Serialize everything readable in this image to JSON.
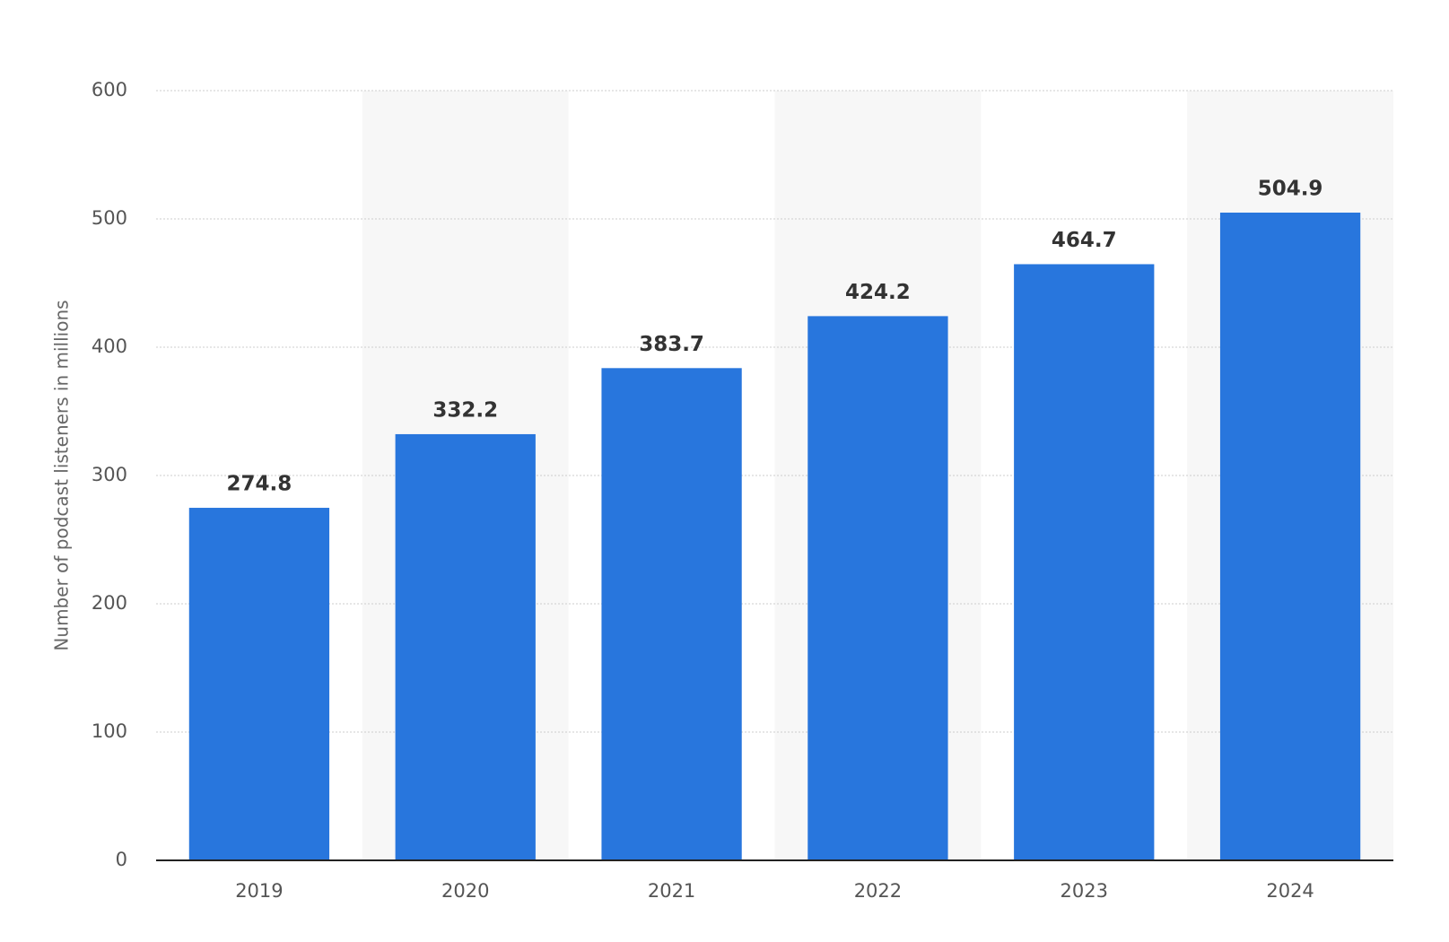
{
  "chart_data": {
    "type": "bar",
    "y_axis_label": "Number of podcast listeners in millions",
    "categories": [
      "2019",
      "2020",
      "2021",
      "2022",
      "2023",
      "2024"
    ],
    "values": [
      274.8,
      332.2,
      383.7,
      424.2,
      464.7,
      504.9
    ],
    "color": "#2876dd",
    "ylim": [
      0,
      600
    ],
    "yticks": [
      0,
      100,
      200,
      300,
      400,
      500,
      600
    ],
    "grid": true
  }
}
